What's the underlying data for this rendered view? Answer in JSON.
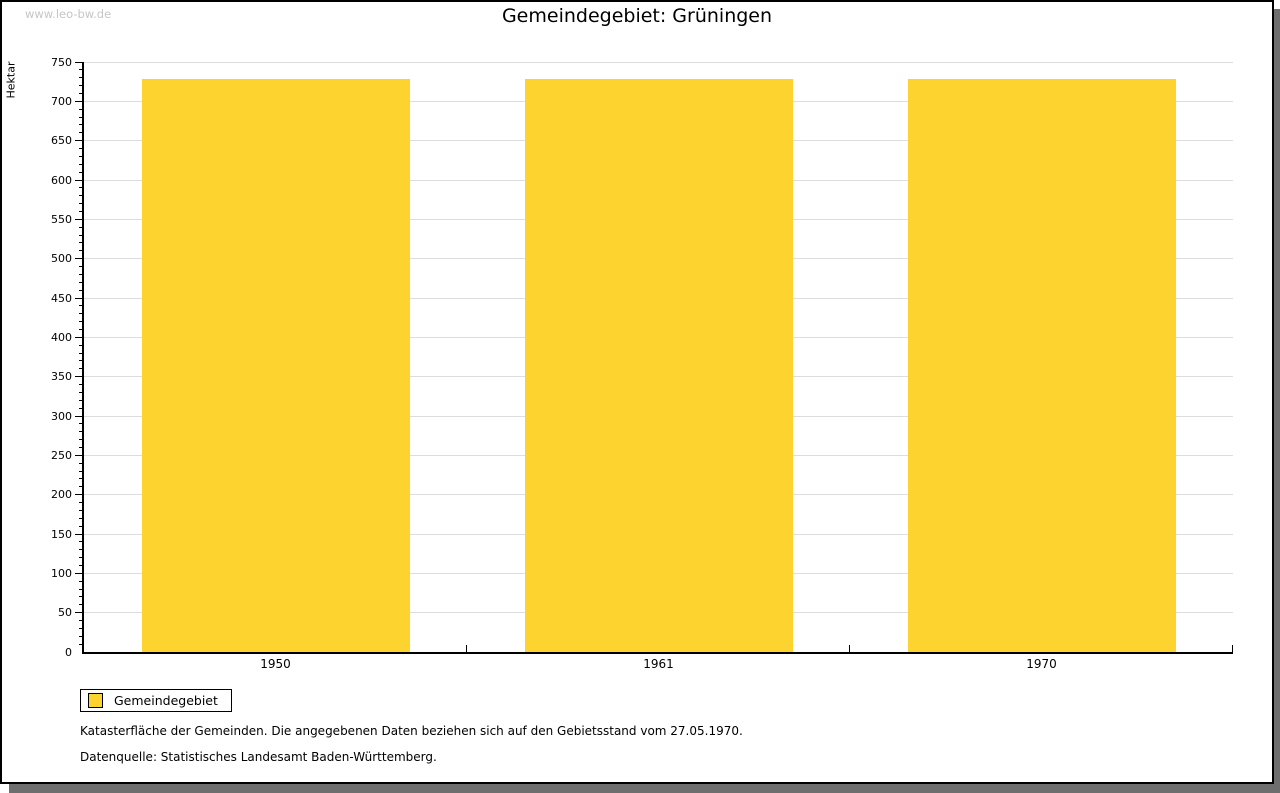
{
  "watermark": "www.leo-bw.de",
  "title": "Gemeindegebiet: Grüningen",
  "chart_data": {
    "type": "bar",
    "categories": [
      "1950",
      "1961",
      "1970"
    ],
    "series": [
      {
        "name": "Gemeindegebiet",
        "values": [
          729,
          729,
          729
        ],
        "color": "#fdd32f"
      }
    ],
    "title": "Gemeindegebiet: Grüningen",
    "xlabel": "",
    "ylabel": "Hektar",
    "ylim": [
      0,
      750
    ],
    "ytick_major": 50,
    "ytick_minor": 10,
    "grid": true,
    "legend_position": "bottom-left"
  },
  "legend": {
    "label": "Gemeindegebiet",
    "swatch_color": "#fdd32f"
  },
  "footnotes": [
    "Katasterfläche der Gemeinden. Die angegebenen Daten beziehen sich auf den Gebietsstand vom 27.05.1970.",
    "Datenquelle: Statistisches Landesamt Baden-Württemberg."
  ],
  "colors": {
    "bar": "#fdd32f",
    "grid": "#dddddd",
    "axis": "#000000",
    "shadow": "#6e6e6e",
    "watermark": "#c6c6c6"
  }
}
